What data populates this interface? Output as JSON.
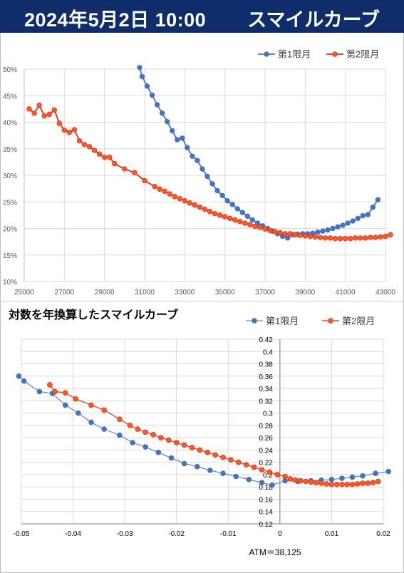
{
  "header": {
    "date": "2024年5月2日 10:00",
    "title": "スマイルカーブ"
  },
  "colors": {
    "header_bg": "#0f2d6b",
    "series1": "#4472c4",
    "series2": "#e32c1a",
    "series2_fill": "#ff5a1f"
  },
  "chart_data": [
    {
      "type": "line",
      "title": "",
      "xlim": [
        25000,
        43000
      ],
      "ylim": [
        0.1,
        0.5
      ],
      "xticks": [
        "25000",
        "27000",
        "29000",
        "31000",
        "33000",
        "35000",
        "37000",
        "39000",
        "41000",
        "43000"
      ],
      "yticks": [
        "10%",
        "15%",
        "20%",
        "25%",
        "30%",
        "35%",
        "40%",
        "45%",
        "50%"
      ],
      "legend": "top-right",
      "series": [
        {
          "name": "第1限月",
          "points": [
            [
              30750,
              0.503
            ],
            [
              30875,
              0.486
            ],
            [
              31125,
              0.468
            ],
            [
              31375,
              0.451
            ],
            [
              31625,
              0.433
            ],
            [
              31875,
              0.417
            ],
            [
              32125,
              0.401
            ],
            [
              32375,
              0.384
            ],
            [
              32625,
              0.367
            ],
            [
              32875,
              0.37
            ],
            [
              33125,
              0.352
            ],
            [
              33375,
              0.336
            ],
            [
              33625,
              0.328
            ],
            [
              33875,
              0.312
            ],
            [
              34125,
              0.298
            ],
            [
              34375,
              0.284
            ],
            [
              34625,
              0.271
            ],
            [
              34875,
              0.262
            ],
            [
              35125,
              0.252
            ],
            [
              35375,
              0.245
            ],
            [
              35625,
              0.237
            ],
            [
              35875,
              0.23
            ],
            [
              36125,
              0.223
            ],
            [
              36375,
              0.216
            ],
            [
              36625,
              0.21
            ],
            [
              36875,
              0.205
            ],
            [
              37125,
              0.2
            ],
            [
              37375,
              0.195
            ],
            [
              37625,
              0.19
            ],
            [
              37875,
              0.185
            ],
            [
              38125,
              0.182
            ],
            [
              38375,
              0.188
            ],
            [
              38625,
              0.189
            ],
            [
              38875,
              0.19
            ],
            [
              39125,
              0.19
            ],
            [
              39375,
              0.191
            ],
            [
              39625,
              0.193
            ],
            [
              39875,
              0.195
            ],
            [
              40125,
              0.197
            ],
            [
              40375,
              0.2
            ],
            [
              40625,
              0.203
            ],
            [
              40875,
              0.206
            ],
            [
              41125,
              0.21
            ],
            [
              41375,
              0.214
            ],
            [
              41625,
              0.219
            ],
            [
              41875,
              0.224
            ],
            [
              42125,
              0.226
            ],
            [
              42375,
              0.24
            ],
            [
              42625,
              0.254
            ]
          ]
        },
        {
          "name": "第2限月",
          "points": [
            [
              25250,
              0.425
            ],
            [
              25500,
              0.417
            ],
            [
              25750,
              0.432
            ],
            [
              26000,
              0.412
            ],
            [
              26250,
              0.415
            ],
            [
              26500,
              0.423
            ],
            [
              26750,
              0.398
            ],
            [
              27000,
              0.385
            ],
            [
              27250,
              0.381
            ],
            [
              27500,
              0.386
            ],
            [
              27750,
              0.365
            ],
            [
              28000,
              0.358
            ],
            [
              28250,
              0.354
            ],
            [
              28500,
              0.347
            ],
            [
              28750,
              0.34
            ],
            [
              29000,
              0.334
            ],
            [
              29250,
              0.334
            ],
            [
              29500,
              0.322
            ],
            [
              30000,
              0.312
            ],
            [
              30500,
              0.305
            ],
            [
              31000,
              0.29
            ],
            [
              31500,
              0.279
            ],
            [
              31750,
              0.274
            ],
            [
              32000,
              0.27
            ],
            [
              32250,
              0.265
            ],
            [
              32500,
              0.26
            ],
            [
              32750,
              0.256
            ],
            [
              33000,
              0.252
            ],
            [
              33250,
              0.248
            ],
            [
              33500,
              0.244
            ],
            [
              33750,
              0.24
            ],
            [
              34000,
              0.236
            ],
            [
              34250,
              0.232
            ],
            [
              34500,
              0.228
            ],
            [
              34750,
              0.225
            ],
            [
              35000,
              0.222
            ],
            [
              35250,
              0.219
            ],
            [
              35500,
              0.216
            ],
            [
              35750,
              0.213
            ],
            [
              36000,
              0.21
            ],
            [
              36250,
              0.207
            ],
            [
              36500,
              0.204
            ],
            [
              36750,
              0.202
            ],
            [
              37000,
              0.199
            ],
            [
              37250,
              0.196
            ],
            [
              37500,
              0.194
            ],
            [
              37750,
              0.192
            ],
            [
              38000,
              0.19
            ],
            [
              38250,
              0.19
            ],
            [
              38500,
              0.188
            ],
            [
              38750,
              0.187
            ],
            [
              39000,
              0.186
            ],
            [
              39250,
              0.185
            ],
            [
              39500,
              0.184
            ],
            [
              39750,
              0.183
            ],
            [
              40000,
              0.182
            ],
            [
              40250,
              0.182
            ],
            [
              40500,
              0.181
            ],
            [
              40750,
              0.181
            ],
            [
              41000,
              0.181
            ],
            [
              41250,
              0.181
            ],
            [
              41500,
              0.182
            ],
            [
              41750,
              0.182
            ],
            [
              42000,
              0.182
            ],
            [
              42250,
              0.183
            ],
            [
              42500,
              0.183
            ],
            [
              42750,
              0.184
            ],
            [
              43000,
              0.185
            ],
            [
              43250,
              0.188
            ]
          ]
        }
      ]
    },
    {
      "type": "line",
      "title": "対数を年換算したスマイルカーブ",
      "xlim": [
        -0.05,
        0.02
      ],
      "ylim": [
        0.12,
        0.42
      ],
      "xticks": [
        "-0.05",
        "-0.04",
        "-0.03",
        "-0.02",
        "-0.01",
        "0",
        "0.01",
        "0.02"
      ],
      "yticks": [
        "0.12",
        "0.14",
        "0.16",
        "0.18",
        "0.2",
        "0.22",
        "0.24",
        "0.26",
        "0.28",
        "0.3",
        "0.32",
        "0.34",
        "0.36",
        "0.38",
        "0.4",
        "0.42"
      ],
      "annotation": "ATM＝38,125",
      "legend": "top-right",
      "series": [
        {
          "name": "第1限月",
          "points": [
            [
              -0.0505,
              0.36
            ],
            [
              -0.0495,
              0.352
            ],
            [
              -0.0465,
              0.335
            ],
            [
              -0.044,
              0.332
            ],
            [
              -0.0415,
              0.313
            ],
            [
              -0.039,
              0.3
            ],
            [
              -0.0365,
              0.285
            ],
            [
              -0.034,
              0.274
            ],
            [
              -0.031,
              0.264
            ],
            [
              -0.0285,
              0.252
            ],
            [
              -0.026,
              0.245
            ],
            [
              -0.0235,
              0.236
            ],
            [
              -0.021,
              0.227
            ],
            [
              -0.0185,
              0.218
            ],
            [
              -0.016,
              0.213
            ],
            [
              -0.0135,
              0.207
            ],
            [
              -0.011,
              0.202
            ],
            [
              -0.0085,
              0.197
            ],
            [
              -0.006,
              0.192
            ],
            [
              -0.0035,
              0.187
            ],
            [
              -0.0015,
              0.183
            ],
            [
              0.001,
              0.19
            ],
            [
              0.0035,
              0.189
            ],
            [
              0.006,
              0.19
            ],
            [
              0.008,
              0.191
            ],
            [
              0.01,
              0.192
            ],
            [
              0.012,
              0.194
            ],
            [
              0.014,
              0.196
            ],
            [
              0.016,
              0.198
            ],
            [
              0.0185,
              0.202
            ],
            [
              0.021,
              0.205
            ]
          ]
        },
        {
          "name": "第2限月",
          "points": [
            [
              -0.0445,
              0.346
            ],
            [
              -0.0435,
              0.335
            ],
            [
              -0.0415,
              0.333
            ],
            [
              -0.0395,
              0.323
            ],
            [
              -0.0365,
              0.313
            ],
            [
              -0.034,
              0.305
            ],
            [
              -0.031,
              0.29
            ],
            [
              -0.029,
              0.28
            ],
            [
              -0.0275,
              0.274
            ],
            [
              -0.026,
              0.269
            ],
            [
              -0.0245,
              0.265
            ],
            [
              -0.023,
              0.26
            ],
            [
              -0.0215,
              0.256
            ],
            [
              -0.02,
              0.252
            ],
            [
              -0.0185,
              0.248
            ],
            [
              -0.017,
              0.244
            ],
            [
              -0.0155,
              0.24
            ],
            [
              -0.014,
              0.236
            ],
            [
              -0.0125,
              0.232
            ],
            [
              -0.011,
              0.228
            ],
            [
              -0.0095,
              0.224
            ],
            [
              -0.008,
              0.22
            ],
            [
              -0.0065,
              0.216
            ],
            [
              -0.005,
              0.212
            ],
            [
              -0.0035,
              0.208
            ],
            [
              -0.002,
              0.204
            ],
            [
              -0.0005,
              0.2
            ],
            [
              0.001,
              0.197
            ],
            [
              0.002,
              0.193
            ],
            [
              0.003,
              0.191
            ],
            [
              0.004,
              0.19
            ],
            [
              0.005,
              0.189
            ],
            [
              0.006,
              0.188
            ],
            [
              0.007,
              0.187
            ],
            [
              0.008,
              0.186
            ],
            [
              0.009,
              0.185
            ],
            [
              0.01,
              0.184
            ],
            [
              0.011,
              0.184
            ],
            [
              0.012,
              0.184
            ],
            [
              0.013,
              0.184
            ],
            [
              0.014,
              0.184
            ],
            [
              0.015,
              0.185
            ],
            [
              0.016,
              0.186
            ],
            [
              0.017,
              0.186
            ],
            [
              0.018,
              0.187
            ],
            [
              0.019,
              0.189
            ]
          ]
        }
      ]
    }
  ]
}
